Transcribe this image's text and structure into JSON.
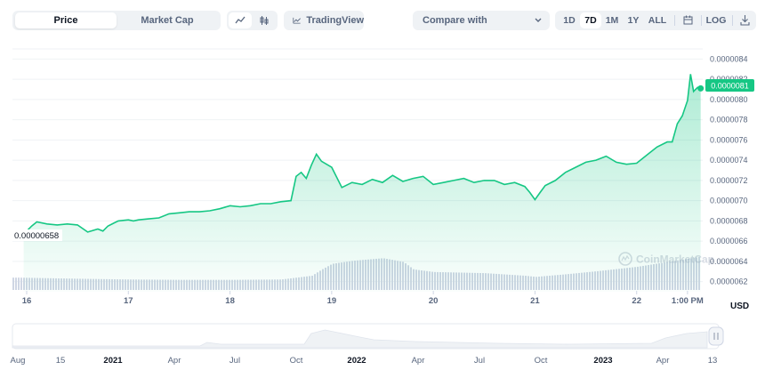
{
  "toolbar": {
    "view_tabs": [
      {
        "label": "Price",
        "active": true
      },
      {
        "label": "Market Cap",
        "active": false
      }
    ],
    "chart_style_buttons": [
      {
        "icon": "line-chart-icon",
        "active": true
      },
      {
        "icon": "candlestick-icon",
        "active": false
      }
    ],
    "tradingview_label": "TradingView",
    "compare_label": "Compare with",
    "ranges": [
      "1D",
      "7D",
      "1M",
      "1Y",
      "ALL"
    ],
    "active_range": "7D",
    "calendar_icon": "calendar-icon",
    "log_label": "LOG",
    "download_icon": "download-icon"
  },
  "colors": {
    "line": "#16c784",
    "volume": "#cfd6e4",
    "axis_text": "#58667e",
    "badge_bg": "#16c784"
  },
  "labels": {
    "currency": "USD",
    "low_label": "0.00000658",
    "current_price_badge": "0.0000081",
    "watermark": "CoinMarketCap"
  },
  "chart_data": {
    "type": "line",
    "ylim": [
      6.1e-06,
      8.5e-06
    ],
    "y_ticks": [
      "0.0000062",
      "0.0000064",
      "0.0000066",
      "0.0000068",
      "0.0000070",
      "0.0000072",
      "0.0000074",
      "0.0000076",
      "0.0000078",
      "0.0000080",
      "0.0000082",
      "0.0000084"
    ],
    "x_ticks": [
      "16",
      "17",
      "18",
      "19",
      "20",
      "21",
      "22",
      "1:00 PM"
    ],
    "x_range_days": [
      15.86,
      22.65
    ],
    "series": [
      {
        "x": [
          15.97,
          16.0,
          16.05,
          16.1,
          16.2,
          16.3,
          16.4,
          16.5,
          16.6,
          16.7,
          16.75,
          16.8,
          16.9,
          17.0,
          17.05,
          17.1,
          17.2,
          17.3,
          17.4,
          17.5,
          17.6,
          17.7,
          17.8,
          17.9,
          18.0,
          18.1,
          18.2,
          18.3,
          18.4,
          18.5,
          18.6,
          18.65,
          18.7,
          18.75,
          18.8,
          18.85,
          18.9,
          19.0,
          19.1,
          19.2,
          19.3,
          19.4,
          19.5,
          19.6,
          19.7,
          19.8,
          19.9,
          20.0,
          20.1,
          20.2,
          20.3,
          20.4,
          20.5,
          20.6,
          20.7,
          20.8,
          20.9,
          20.95,
          21.0,
          21.05,
          21.1,
          21.2,
          21.3,
          21.4,
          21.5,
          21.6,
          21.7,
          21.8,
          21.9,
          22.0,
          22.1,
          22.2,
          22.3,
          22.35,
          22.4,
          22.45,
          22.5,
          22.53,
          22.56,
          22.6,
          22.63
        ],
        "y": [
          6.62e-06,
          6.7e-06,
          6.75e-06,
          6.79e-06,
          6.77e-06,
          6.76e-06,
          6.77e-06,
          6.76e-06,
          6.69e-06,
          6.72e-06,
          6.7e-06,
          6.75e-06,
          6.8e-06,
          6.81e-06,
          6.8e-06,
          6.81e-06,
          6.82e-06,
          6.83e-06,
          6.87e-06,
          6.88e-06,
          6.89e-06,
          6.89e-06,
          6.9e-06,
          6.92e-06,
          6.95e-06,
          6.94e-06,
          6.95e-06,
          6.97e-06,
          6.97e-06,
          6.99e-06,
          7e-06,
          7.24e-06,
          7.28e-06,
          7.22e-06,
          7.35e-06,
          7.46e-06,
          7.39e-06,
          7.33e-06,
          7.13e-06,
          7.18e-06,
          7.16e-06,
          7.21e-06,
          7.18e-06,
          7.25e-06,
          7.19e-06,
          7.22e-06,
          7.24e-06,
          7.16e-06,
          7.18e-06,
          7.2e-06,
          7.22e-06,
          7.18e-06,
          7.2e-06,
          7.2e-06,
          7.16e-06,
          7.18e-06,
          7.14e-06,
          7.08e-06,
          7.01e-06,
          7.08e-06,
          7.15e-06,
          7.2e-06,
          7.28e-06,
          7.33e-06,
          7.38e-06,
          7.4e-06,
          7.44e-06,
          7.38e-06,
          7.36e-06,
          7.37e-06,
          7.45e-06,
          7.53e-06,
          7.58e-06,
          7.58e-06,
          7.76e-06,
          7.84e-06,
          7.99e-06,
          8.25e-06,
          8.08e-06,
          8.12e-06,
          8.11e-06
        ]
      }
    ],
    "volume": {
      "x": [
        15.9,
        16.5,
        17.0,
        17.5,
        18.0,
        18.5,
        18.8,
        18.9,
        19.0,
        19.2,
        19.5,
        19.6,
        19.7,
        19.8,
        20.0,
        20.5,
        20.9,
        21.0,
        21.3,
        21.6,
        22.0,
        22.3,
        22.65
      ],
      "values": [
        0.33,
        0.3,
        0.28,
        0.27,
        0.27,
        0.28,
        0.38,
        0.55,
        0.7,
        0.78,
        0.85,
        0.8,
        0.75,
        0.55,
        0.48,
        0.45,
        0.38,
        0.35,
        0.42,
        0.5,
        0.62,
        0.75,
        0.9
      ]
    }
  },
  "navigator": {
    "x_ticks": [
      "Aug",
      "15",
      "2021",
      "Apr",
      "Jul",
      "Oct",
      "2022",
      "Apr",
      "Jul",
      "Oct",
      "2023",
      "Apr",
      "13"
    ],
    "bold_ticks": [
      "2021",
      "2022",
      "2023"
    ],
    "handle_icon": "drag-handle-icon"
  }
}
